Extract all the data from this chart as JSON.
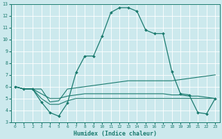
{
  "xlabel": "Humidex (Indice chaleur)",
  "bg_color": "#cce9ed",
  "grid_color": "#ffffff",
  "line_color": "#1a7a6e",
  "xlim": [
    -0.5,
    23.5
  ],
  "ylim": [
    3,
    13
  ],
  "yticks": [
    3,
    4,
    5,
    6,
    7,
    8,
    9,
    10,
    11,
    12,
    13
  ],
  "xticks": [
    0,
    1,
    2,
    3,
    4,
    5,
    6,
    7,
    8,
    9,
    10,
    11,
    12,
    13,
    14,
    15,
    16,
    17,
    18,
    19,
    20,
    21,
    22,
    23
  ],
  "line_main_x": [
    0,
    1,
    2,
    3,
    4,
    5,
    6,
    7,
    8,
    9,
    10,
    11,
    12,
    13,
    14,
    15,
    16,
    17,
    18,
    19,
    20,
    21,
    22,
    23
  ],
  "line_main_y": [
    6.0,
    5.8,
    5.8,
    4.7,
    3.8,
    3.5,
    4.6,
    7.2,
    8.6,
    8.6,
    10.3,
    12.3,
    12.7,
    12.7,
    12.4,
    10.8,
    10.5,
    10.5,
    7.3,
    5.4,
    5.3,
    3.8,
    3.7,
    5.0
  ],
  "line_a_x": [
    0,
    1,
    2,
    3,
    4,
    5,
    6,
    7,
    8,
    9,
    10,
    11,
    12,
    13,
    14,
    15,
    16,
    17,
    18,
    19,
    20,
    21,
    22,
    23
  ],
  "line_a_y": [
    6.0,
    5.8,
    5.8,
    5.8,
    4.7,
    4.8,
    5.8,
    5.9,
    6.0,
    6.1,
    6.2,
    6.3,
    6.4,
    6.5,
    6.5,
    6.5,
    6.5,
    6.5,
    6.5,
    6.6,
    6.7,
    6.8,
    6.9,
    7.0
  ],
  "line_b_x": [
    0,
    1,
    2,
    3,
    4,
    5,
    6,
    7,
    8,
    9,
    10,
    11,
    12,
    13,
    14,
    15,
    16,
    17,
    18,
    19,
    20,
    21,
    22,
    23
  ],
  "line_b_y": [
    6.0,
    5.8,
    5.8,
    5.4,
    5.0,
    5.0,
    5.2,
    5.3,
    5.4,
    5.4,
    5.4,
    5.4,
    5.4,
    5.4,
    5.4,
    5.4,
    5.4,
    5.4,
    5.3,
    5.3,
    5.2,
    5.2,
    5.1,
    5.0
  ],
  "line_c_x": [
    0,
    1,
    2,
    3,
    4,
    5,
    6,
    7,
    8,
    9,
    10,
    11,
    12,
    13,
    14,
    15,
    16,
    17,
    18,
    19,
    20,
    21,
    22,
    23
  ],
  "line_c_y": [
    6.0,
    5.8,
    5.8,
    5.0,
    4.5,
    4.5,
    4.8,
    5.0,
    5.0,
    5.0,
    5.0,
    5.0,
    5.0,
    5.0,
    5.0,
    5.0,
    5.0,
    5.0,
    5.0,
    5.0,
    5.0,
    5.0,
    5.0,
    5.0
  ]
}
